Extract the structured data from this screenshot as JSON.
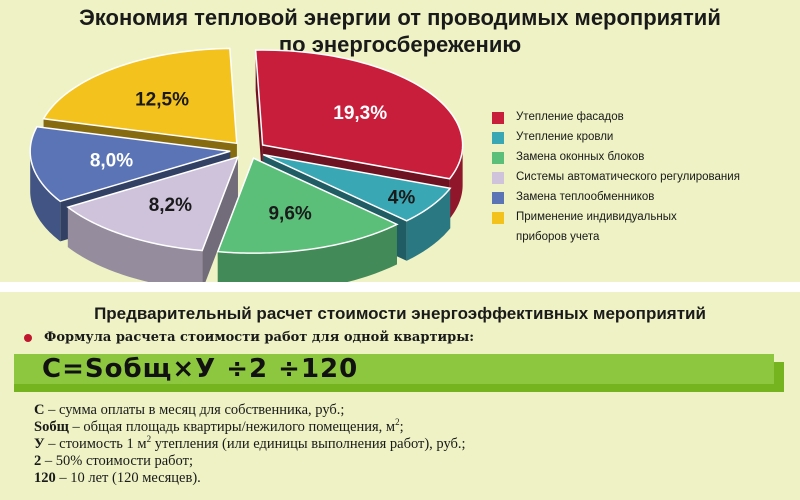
{
  "chart_data": {
    "type": "pie",
    "title": "Экономия тепловой энергии от проводимых мероприятий по энергосбережению",
    "title_lines": [
      "Экономия тепловой энергии от проводимых мероприятий",
      "по энергосбережению"
    ],
    "legend_position": "right",
    "slices": [
      {
        "label": "Утепление фасадов",
        "value": 19.3,
        "value_label": "19,3%",
        "color": "#c81e3c"
      },
      {
        "label": "Утепление кровли",
        "value": 4,
        "value_label": "4%",
        "color": "#3aa7b4"
      },
      {
        "label": "Замена оконных блоков",
        "value": 9.6,
        "value_label": "9,6%",
        "color": "#5bbf7a"
      },
      {
        "label": "Системы автоматического регулирования",
        "value": 8.2,
        "value_label": "8,2%",
        "color": "#cfc3dc"
      },
      {
        "label": "Замена теплообменников",
        "value": 8.0,
        "value_label": "8,0%",
        "color": "#5b74b6"
      },
      {
        "label": "Применение индивидуальных приборов учета",
        "value": 12.5,
        "value_label": "12,5%",
        "color": "#f3c21d"
      }
    ],
    "legend_lines": [
      [
        "Утепление фасадов"
      ],
      [
        "Утепление кровли"
      ],
      [
        "Замена оконных блоков"
      ],
      [
        "Системы автоматического регулирования"
      ],
      [
        "Замена теплообменников"
      ],
      [
        "Применение индивидуальных",
        "приборов учета"
      ]
    ]
  },
  "calculation": {
    "title": "Предварительный расчет стоимости энергоэффективных мероприятий",
    "formula_caption": "Формула расчета стоимости работ для одной квартиры:",
    "formula": "С=Sобщ×У ÷2 ÷120",
    "definitions": [
      {
        "term": "С",
        "text": " – сумма оплаты в месяц для собственника, руб.;"
      },
      {
        "term": "Sобщ",
        "text": " – общая площадь квартиры/нежилого помещения, м",
        "sup": "2",
        "tail": ";"
      },
      {
        "term": "У",
        "text": " – стоимость 1 м",
        "sup": "2",
        "tail": " утепления (или единицы выполнения работ), руб.;"
      },
      {
        "term": "2",
        "text": " – 50% стоимости работ;"
      },
      {
        "term": "120",
        "text": " – 10 лет (120 месяцев)."
      }
    ]
  },
  "colors": {
    "panel_bg": "#eef2c4",
    "formula_bar": "#8dc63f",
    "bullet": "#c0162e"
  }
}
